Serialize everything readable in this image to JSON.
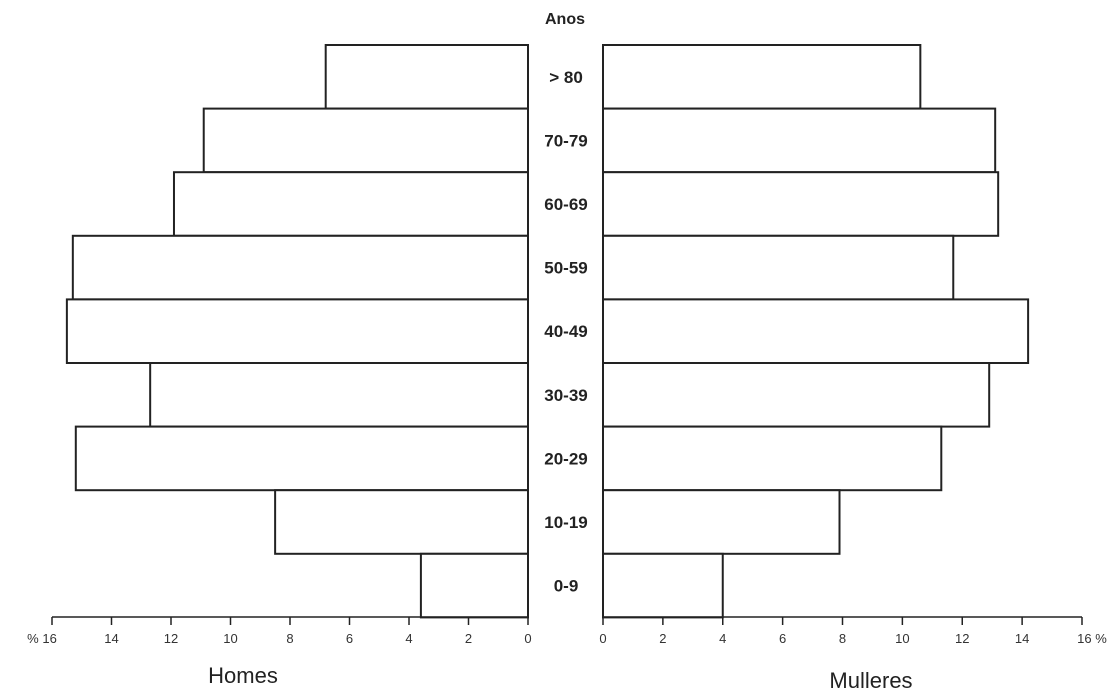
{
  "chart_data": {
    "type": "bar",
    "orientation": "horizontal",
    "layout": "population-pyramid",
    "category_header": "Anos",
    "categories": [
      "> 80",
      "70-79",
      "60-69",
      "50-59",
      "40-49",
      "30-39",
      "20-29",
      "10-19",
      "0-9"
    ],
    "series": [
      {
        "name": "Homes",
        "side": "left",
        "values": [
          6.8,
          10.9,
          11.9,
          15.3,
          15.5,
          12.7,
          15.2,
          8.5,
          3.6
        ]
      },
      {
        "name": "Mulleres",
        "side": "right",
        "values": [
          10.6,
          13.1,
          13.2,
          11.7,
          14.2,
          12.9,
          11.3,
          7.9,
          4.0
        ]
      }
    ],
    "xlim": [
      0,
      16
    ],
    "left_ticks": [
      "% 16",
      "14",
      "12",
      "10",
      "8",
      "6",
      "4",
      "2",
      "0"
    ],
    "right_ticks": [
      "0",
      "2",
      "4",
      "6",
      "8",
      "10",
      "12",
      "14",
      "16 %"
    ],
    "left_label": "Homes",
    "right_label": "Mulleres",
    "grid": false,
    "colors": {
      "bar_fill": "#ffffff",
      "bar_stroke": "#222222",
      "text": "#222222"
    }
  }
}
